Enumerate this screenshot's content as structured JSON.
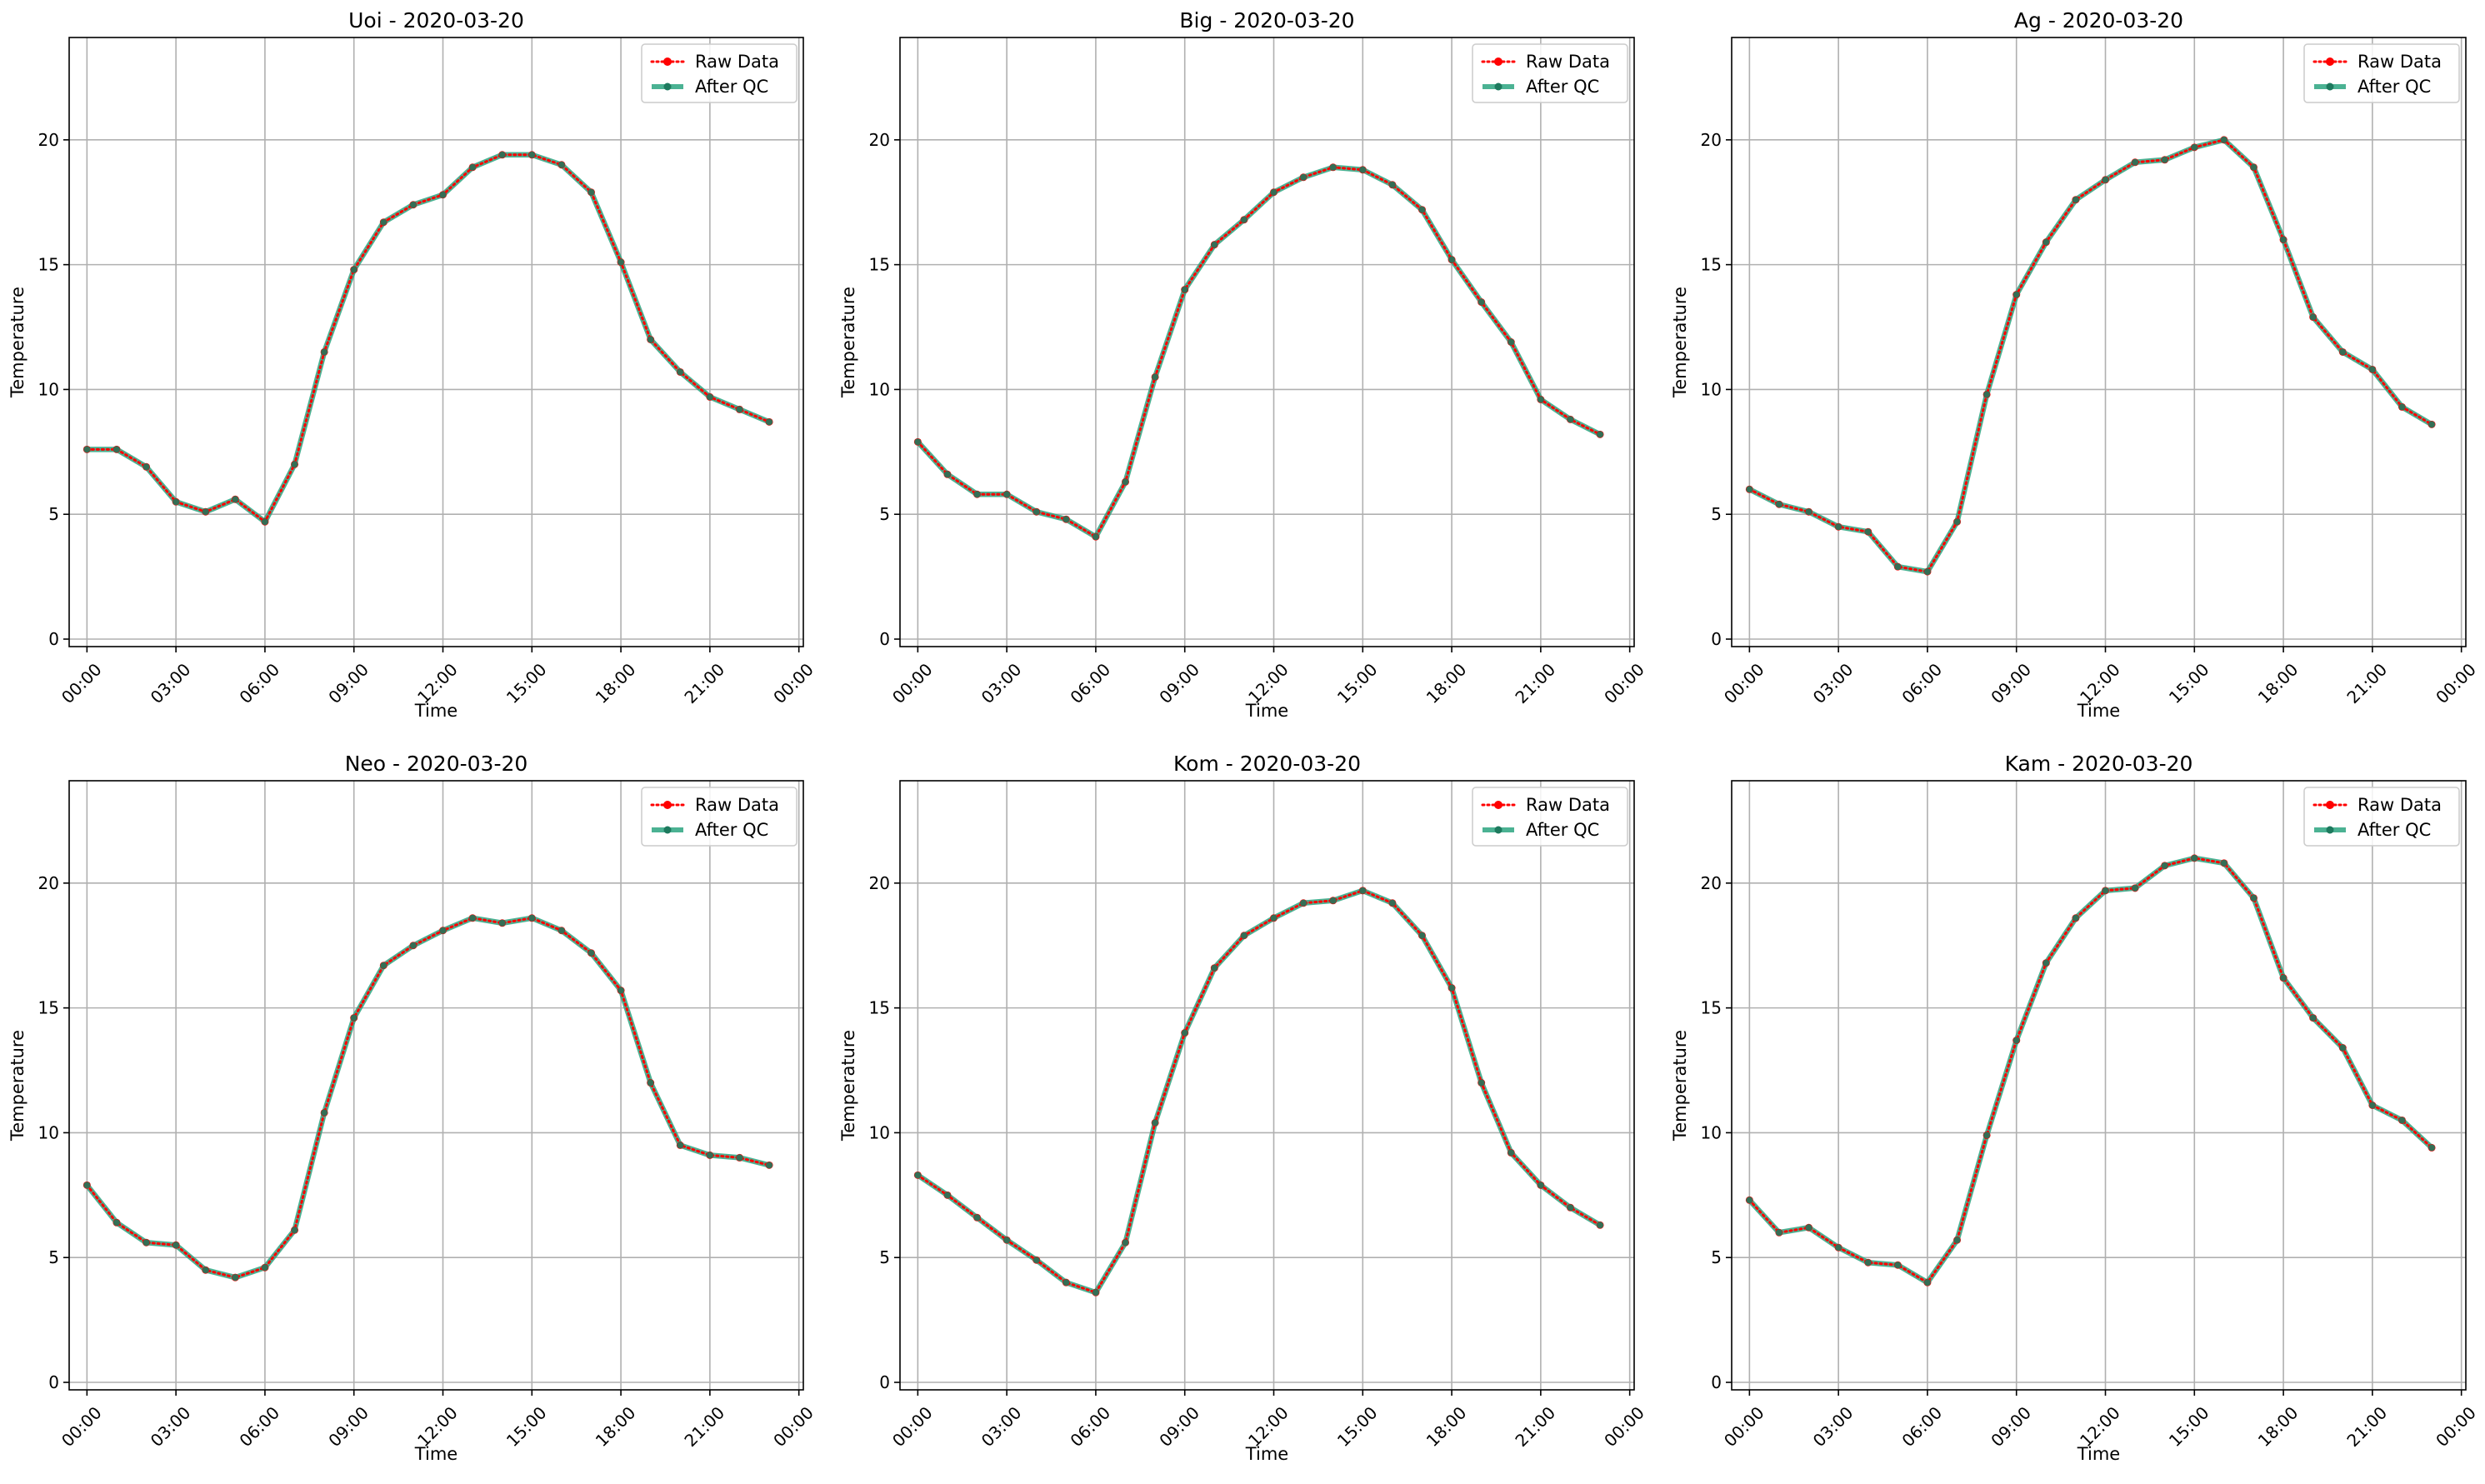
{
  "chart_data": [
    {
      "type": "line",
      "title": "Uoi - 2020-03-20",
      "xlabel": "Time",
      "ylabel": "Temperature",
      "x": [
        "00:00",
        "01:00",
        "02:00",
        "03:00",
        "04:00",
        "05:00",
        "06:00",
        "07:00",
        "08:00",
        "09:00",
        "10:00",
        "11:00",
        "12:00",
        "13:00",
        "14:00",
        "15:00",
        "16:00",
        "17:00",
        "18:00",
        "19:00",
        "20:00",
        "21:00",
        "22:00",
        "23:00"
      ],
      "xticks": [
        "00:00",
        "03:00",
        "06:00",
        "09:00",
        "12:00",
        "15:00",
        "18:00",
        "21:00",
        "00:00"
      ],
      "yticks": [
        0,
        5,
        10,
        15,
        20
      ],
      "ylim": [
        -0.3,
        24.1
      ],
      "grid": true,
      "legend": "top-right",
      "series": [
        {
          "name": "Raw Data",
          "color": "#ff0000",
          "style": "dotted",
          "values": [
            7.6,
            7.6,
            6.9,
            5.5,
            5.1,
            5.6,
            4.7,
            7.0,
            11.5,
            14.8,
            16.7,
            17.4,
            17.8,
            18.9,
            19.4,
            19.4,
            19.0,
            17.9,
            15.1,
            12.0,
            10.7,
            9.7,
            9.2,
            8.7
          ]
        },
        {
          "name": "After QC",
          "color": "#2ca580",
          "style": "solid",
          "values": [
            7.6,
            7.6,
            6.9,
            5.5,
            5.1,
            5.6,
            4.7,
            7.0,
            11.5,
            14.8,
            16.7,
            17.4,
            17.8,
            18.9,
            19.4,
            19.4,
            19.0,
            17.9,
            15.1,
            12.0,
            10.7,
            9.7,
            9.2,
            8.7
          ]
        }
      ]
    },
    {
      "type": "line",
      "title": "Big - 2020-03-20",
      "xlabel": "Time",
      "ylabel": "Temperature",
      "x": [
        "00:00",
        "01:00",
        "02:00",
        "03:00",
        "04:00",
        "05:00",
        "06:00",
        "07:00",
        "08:00",
        "09:00",
        "10:00",
        "11:00",
        "12:00",
        "13:00",
        "14:00",
        "15:00",
        "16:00",
        "17:00",
        "18:00",
        "19:00",
        "20:00",
        "21:00",
        "22:00",
        "23:00"
      ],
      "xticks": [
        "00:00",
        "03:00",
        "06:00",
        "09:00",
        "12:00",
        "15:00",
        "18:00",
        "21:00",
        "00:00"
      ],
      "yticks": [
        0,
        5,
        10,
        15,
        20
      ],
      "ylim": [
        -0.3,
        24.1
      ],
      "grid": true,
      "legend": "top-right",
      "series": [
        {
          "name": "Raw Data",
          "color": "#ff0000",
          "style": "dotted",
          "values": [
            7.9,
            6.6,
            5.8,
            5.8,
            5.1,
            4.8,
            4.1,
            6.3,
            10.5,
            14.0,
            15.8,
            16.8,
            17.9,
            18.5,
            18.9,
            18.8,
            18.2,
            17.2,
            15.2,
            13.5,
            11.9,
            9.6,
            8.8,
            8.2
          ]
        },
        {
          "name": "After QC",
          "color": "#2ca580",
          "style": "solid",
          "values": [
            7.9,
            6.6,
            5.8,
            5.8,
            5.1,
            4.8,
            4.1,
            6.3,
            10.5,
            14.0,
            15.8,
            16.8,
            17.9,
            18.5,
            18.9,
            18.8,
            18.2,
            17.2,
            15.2,
            13.5,
            11.9,
            9.6,
            8.8,
            8.2
          ]
        }
      ]
    },
    {
      "type": "line",
      "title": "Ag - 2020-03-20",
      "xlabel": "Time",
      "ylabel": "Temperature",
      "x": [
        "00:00",
        "01:00",
        "02:00",
        "03:00",
        "04:00",
        "05:00",
        "06:00",
        "07:00",
        "08:00",
        "09:00",
        "10:00",
        "11:00",
        "12:00",
        "13:00",
        "14:00",
        "15:00",
        "16:00",
        "17:00",
        "18:00",
        "19:00",
        "20:00",
        "21:00",
        "22:00",
        "23:00"
      ],
      "xticks": [
        "00:00",
        "03:00",
        "06:00",
        "09:00",
        "12:00",
        "15:00",
        "18:00",
        "21:00",
        "00:00"
      ],
      "yticks": [
        0,
        5,
        10,
        15,
        20
      ],
      "ylim": [
        -0.3,
        24.1
      ],
      "grid": true,
      "legend": "top-right",
      "series": [
        {
          "name": "Raw Data",
          "color": "#ff0000",
          "style": "dotted",
          "values": [
            6.0,
            5.4,
            5.1,
            4.5,
            4.3,
            2.9,
            2.7,
            4.7,
            9.8,
            13.8,
            15.9,
            17.6,
            18.4,
            19.1,
            19.2,
            19.7,
            20.0,
            18.9,
            16.0,
            12.9,
            11.5,
            10.8,
            9.3,
            8.6
          ]
        },
        {
          "name": "After QC",
          "color": "#2ca580",
          "style": "solid",
          "values": [
            6.0,
            5.4,
            5.1,
            4.5,
            4.3,
            2.9,
            2.7,
            4.7,
            9.8,
            13.8,
            15.9,
            17.6,
            18.4,
            19.1,
            19.2,
            19.7,
            20.0,
            18.9,
            16.0,
            12.9,
            11.5,
            10.8,
            9.3,
            8.6
          ]
        }
      ]
    },
    {
      "type": "line",
      "title": "Neo - 2020-03-20",
      "xlabel": "Time",
      "ylabel": "Temperature",
      "x": [
        "00:00",
        "01:00",
        "02:00",
        "03:00",
        "04:00",
        "05:00",
        "06:00",
        "07:00",
        "08:00",
        "09:00",
        "10:00",
        "11:00",
        "12:00",
        "13:00",
        "14:00",
        "15:00",
        "16:00",
        "17:00",
        "18:00",
        "19:00",
        "20:00",
        "21:00",
        "22:00",
        "23:00"
      ],
      "xticks": [
        "00:00",
        "03:00",
        "06:00",
        "09:00",
        "12:00",
        "15:00",
        "18:00",
        "21:00",
        "00:00"
      ],
      "yticks": [
        0,
        5,
        10,
        15,
        20
      ],
      "ylim": [
        -0.3,
        24.1
      ],
      "grid": true,
      "legend": "top-right",
      "series": [
        {
          "name": "Raw Data",
          "color": "#ff0000",
          "style": "dotted",
          "values": [
            7.9,
            6.4,
            5.6,
            5.5,
            4.5,
            4.2,
            4.6,
            6.1,
            10.8,
            14.6,
            16.7,
            17.5,
            18.1,
            18.6,
            18.4,
            18.6,
            18.1,
            17.2,
            15.7,
            12.0,
            9.5,
            9.1,
            9.0,
            8.7
          ]
        },
        {
          "name": "After QC",
          "color": "#2ca580",
          "style": "solid",
          "values": [
            7.9,
            6.4,
            5.6,
            5.5,
            4.5,
            4.2,
            4.6,
            6.1,
            10.8,
            14.6,
            16.7,
            17.5,
            18.1,
            18.6,
            18.4,
            18.6,
            18.1,
            17.2,
            15.7,
            12.0,
            9.5,
            9.1,
            9.0,
            8.7
          ]
        }
      ]
    },
    {
      "type": "line",
      "title": "Kom - 2020-03-20",
      "xlabel": "Time",
      "ylabel": "Temperature",
      "x": [
        "00:00",
        "01:00",
        "02:00",
        "03:00",
        "04:00",
        "05:00",
        "06:00",
        "07:00",
        "08:00",
        "09:00",
        "10:00",
        "11:00",
        "12:00",
        "13:00",
        "14:00",
        "15:00",
        "16:00",
        "17:00",
        "18:00",
        "19:00",
        "20:00",
        "21:00",
        "22:00",
        "23:00"
      ],
      "xticks": [
        "00:00",
        "03:00",
        "06:00",
        "09:00",
        "12:00",
        "15:00",
        "18:00",
        "21:00",
        "00:00"
      ],
      "yticks": [
        0,
        5,
        10,
        15,
        20
      ],
      "ylim": [
        -0.3,
        24.1
      ],
      "grid": true,
      "legend": "top-right",
      "series": [
        {
          "name": "Raw Data",
          "color": "#ff0000",
          "style": "dotted",
          "values": [
            8.3,
            7.5,
            6.6,
            5.7,
            4.9,
            4.0,
            3.6,
            5.6,
            10.4,
            14.0,
            16.6,
            17.9,
            18.6,
            19.2,
            19.3,
            19.7,
            19.2,
            17.9,
            15.8,
            12.0,
            9.2,
            7.9,
            7.0,
            6.3
          ]
        },
        {
          "name": "After QC",
          "color": "#2ca580",
          "style": "solid",
          "values": [
            8.3,
            7.5,
            6.6,
            5.7,
            4.9,
            4.0,
            3.6,
            5.6,
            10.4,
            14.0,
            16.6,
            17.9,
            18.6,
            19.2,
            19.3,
            19.7,
            19.2,
            17.9,
            15.8,
            12.0,
            9.2,
            7.9,
            7.0,
            6.3
          ]
        }
      ]
    },
    {
      "type": "line",
      "title": "Kam - 2020-03-20",
      "xlabel": "Time",
      "ylabel": "Temperature",
      "x": [
        "00:00",
        "01:00",
        "02:00",
        "03:00",
        "04:00",
        "05:00",
        "06:00",
        "07:00",
        "08:00",
        "09:00",
        "10:00",
        "11:00",
        "12:00",
        "13:00",
        "14:00",
        "15:00",
        "16:00",
        "17:00",
        "18:00",
        "19:00",
        "20:00",
        "21:00",
        "22:00",
        "23:00"
      ],
      "xticks": [
        "00:00",
        "03:00",
        "06:00",
        "09:00",
        "12:00",
        "15:00",
        "18:00",
        "21:00",
        "00:00"
      ],
      "yticks": [
        0,
        5,
        10,
        15,
        20
      ],
      "ylim": [
        -0.3,
        24.1
      ],
      "grid": true,
      "legend": "top-right",
      "series": [
        {
          "name": "Raw Data",
          "color": "#ff0000",
          "style": "dotted",
          "values": [
            7.3,
            6.0,
            6.2,
            5.4,
            4.8,
            4.7,
            4.0,
            5.7,
            9.9,
            13.7,
            16.8,
            18.6,
            19.7,
            19.8,
            20.7,
            21.0,
            20.8,
            19.4,
            16.2,
            14.6,
            13.4,
            11.1,
            10.5,
            9.4
          ]
        },
        {
          "name": "After QC",
          "color": "#2ca580",
          "style": "solid",
          "values": [
            7.3,
            6.0,
            6.2,
            5.4,
            4.8,
            4.7,
            4.0,
            5.7,
            9.9,
            13.7,
            16.8,
            18.6,
            19.7,
            19.8,
            20.7,
            21.0,
            20.8,
            19.4,
            16.2,
            14.6,
            13.4,
            11.1,
            10.5,
            9.4
          ]
        }
      ]
    }
  ]
}
